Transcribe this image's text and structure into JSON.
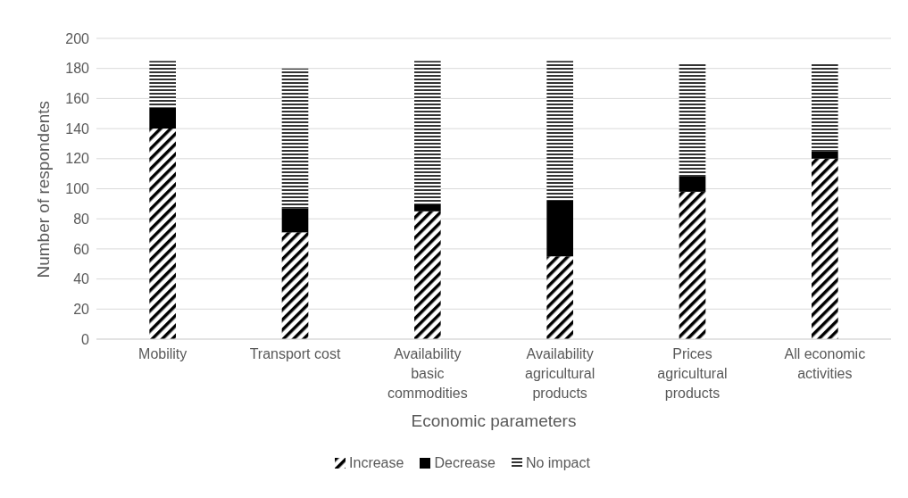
{
  "chart_data": {
    "type": "bar",
    "stacked": true,
    "xlabel": "Economic parameters",
    "ylabel": "Number of respondents",
    "categories": [
      "Mobility",
      "Transport cost",
      "Availability basic commodities",
      "Availability agricultural products",
      "Prices agricultural products",
      "All economic activities"
    ],
    "series": [
      {
        "name": "Increase",
        "color": "#000000",
        "values": [
          140,
          71,
          85,
          55,
          98,
          120
        ]
      },
      {
        "name": "Decrease",
        "color": "#000000",
        "values": [
          14,
          16,
          5,
          37,
          10,
          5
        ]
      },
      {
        "name": "No impact",
        "color": "#000000",
        "values": [
          31,
          93,
          95,
          93,
          76,
          59
        ]
      }
    ],
    "ylim": [
      0,
      200
    ],
    "yticks": [
      0,
      20,
      40,
      60,
      80,
      100,
      120,
      140,
      160,
      180,
      200
    ],
    "grid": "y",
    "legend": "bottom"
  }
}
